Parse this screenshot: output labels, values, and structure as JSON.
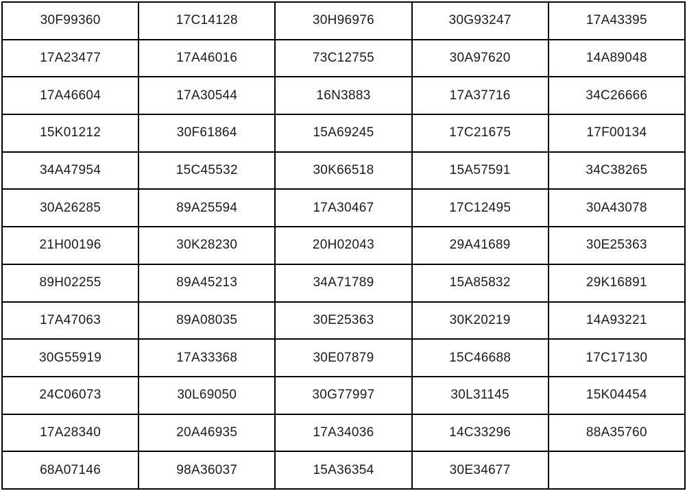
{
  "table": {
    "name": "part-codes-table",
    "columns": 5,
    "border_color": "#000000",
    "text_color": "#1a1a1a",
    "background_color": "#ffffff",
    "rows": [
      [
        "30F99360",
        "17C14128",
        "30H96976",
        "30G93247",
        "17A43395"
      ],
      [
        "17A23477",
        "17A46016",
        "73C12755",
        "30A97620",
        "14A89048"
      ],
      [
        "17A46604",
        "17A30544",
        "16N3883",
        "17A37716",
        "34C26666"
      ],
      [
        "15K01212",
        "30F61864",
        "15A69245",
        "17C21675",
        "17F00134"
      ],
      [
        "34A47954",
        "15C45532",
        "30K66518",
        "15A57591",
        "34C38265"
      ],
      [
        "30A26285",
        "89A25594",
        "17A30467",
        "17C12495",
        "30A43078"
      ],
      [
        "21H00196",
        "30K28230",
        "20H02043",
        "29A41689",
        "30E25363"
      ],
      [
        "89H02255",
        "89A45213",
        "34A71789",
        "15A85832",
        "29K16891"
      ],
      [
        "17A47063",
        "89A08035",
        "30E25363",
        "30K20219",
        "14A93221"
      ],
      [
        "30G55919",
        "17A33368",
        "30E07879",
        "15C46688",
        "17C17130"
      ],
      [
        "24C06073",
        "30L69050",
        "30G77997",
        "30L31145",
        "15K04454"
      ],
      [
        "17A28340",
        "20A46935",
        "17A34036",
        "14C33296",
        "88A35760"
      ],
      [
        "68A07146",
        "98A36037",
        "15A36354",
        "30E34677",
        ""
      ]
    ]
  }
}
